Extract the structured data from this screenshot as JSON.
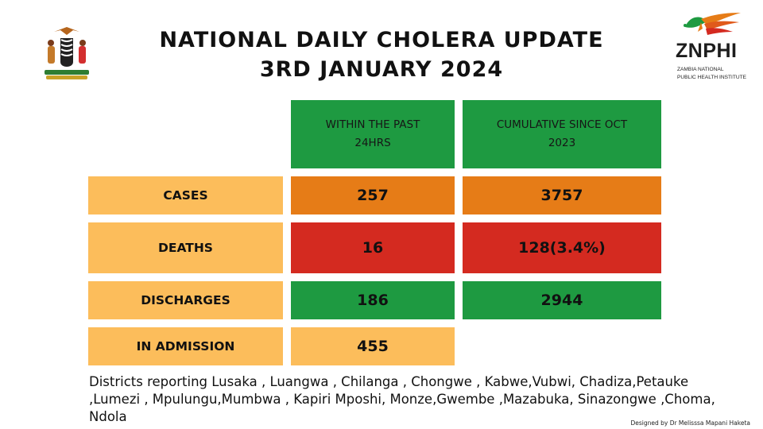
{
  "header": {
    "title_line1": "NATIONAL  DAILY CHOLERA UPDATE",
    "title_line2": "3RD JANUARY 2024"
  },
  "logo": {
    "name": "ZNPHI",
    "subtitle_line1": "ZAMBIA NATIONAL",
    "subtitle_line2": "PUBLIC HEALTH INSTITUTE"
  },
  "table": {
    "column_headers": [
      "WITHIN THE PAST\n24HRS",
      "CUMULATIVE SINCE OCT\n2023"
    ],
    "rows": [
      {
        "label": "CASES",
        "past_24hrs": "257",
        "cumulative": "3757"
      },
      {
        "label": "DEATHS",
        "past_24hrs": "16",
        "cumulative": "128(3.4%)"
      },
      {
        "label": "DISCHARGES",
        "past_24hrs": "186",
        "cumulative": "2944"
      },
      {
        "label": "IN ADMISSION",
        "past_24hrs": "455",
        "cumulative": ""
      }
    ]
  },
  "districts_text": "Districts reporting Lusaka , Luangwa , Chilanga , Chongwe , Kabwe,Vubwi, Chadiza,Petauke ,Lumezi , Mpulungu,Mumbwa , Kapiri Mposhi, Monze,Gwembe ,Mazabuka, Sinazongwe ,Choma, Ndola",
  "credit": "Designed by Dr Melisssa Mapani Haketa",
  "colors": {
    "header_green": "#1e9a41",
    "label_yellow": "#fcbd5b",
    "cases_orange": "#e67c17",
    "deaths_red": "#d42a20",
    "discharges_green": "#1e9a41"
  }
}
